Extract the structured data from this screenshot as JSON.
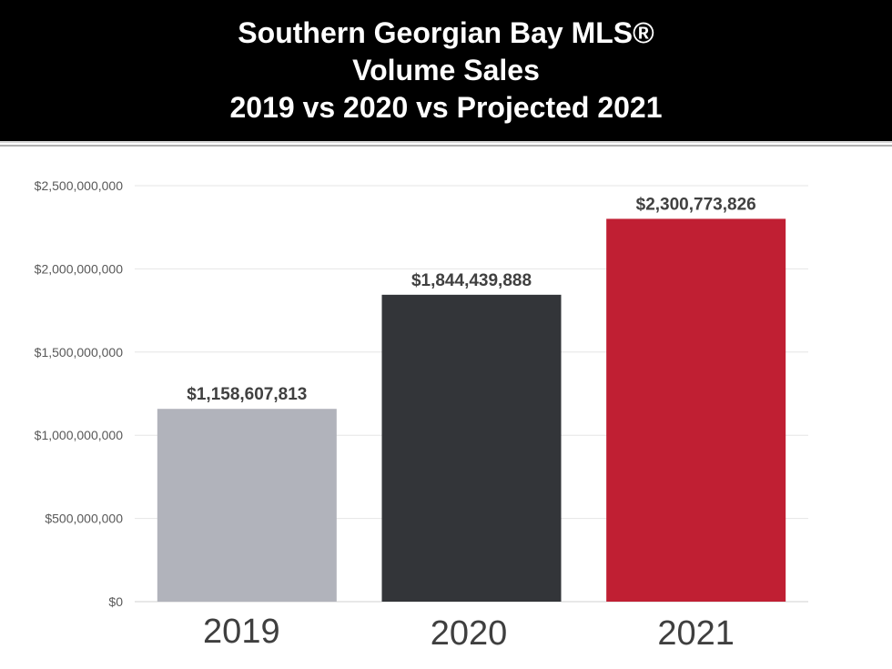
{
  "header": {
    "title_lines": [
      "Southern Georgian Bay MLS®",
      "Volume Sales",
      "2019 vs 2020 vs Projected 2021"
    ]
  },
  "chart_data": {
    "type": "bar",
    "title": "Southern Georgian Bay MLS® Volume Sales 2019 vs 2020 vs Projected 2021",
    "categories": [
      "2019",
      "2020",
      "2021"
    ],
    "values": [
      1158607813,
      1844439888,
      2300773826
    ],
    "value_labels": [
      "$1,158,607,813",
      "$1,844,439,888",
      "$2,300,773,826"
    ],
    "bar_colors": [
      "#b1b3bb",
      "#333539",
      "#c01f33"
    ],
    "ylim": [
      0,
      2500000000
    ],
    "y_ticks": [
      0,
      500000000,
      1000000000,
      1500000000,
      2000000000,
      2500000000
    ],
    "y_tick_labels": [
      "$0",
      "$500,000,000",
      "$1,000,000,000",
      "$1,500,000,000",
      "$2,000,000,000",
      "$2,500,000,000"
    ],
    "grid": true,
    "legend": "none"
  }
}
